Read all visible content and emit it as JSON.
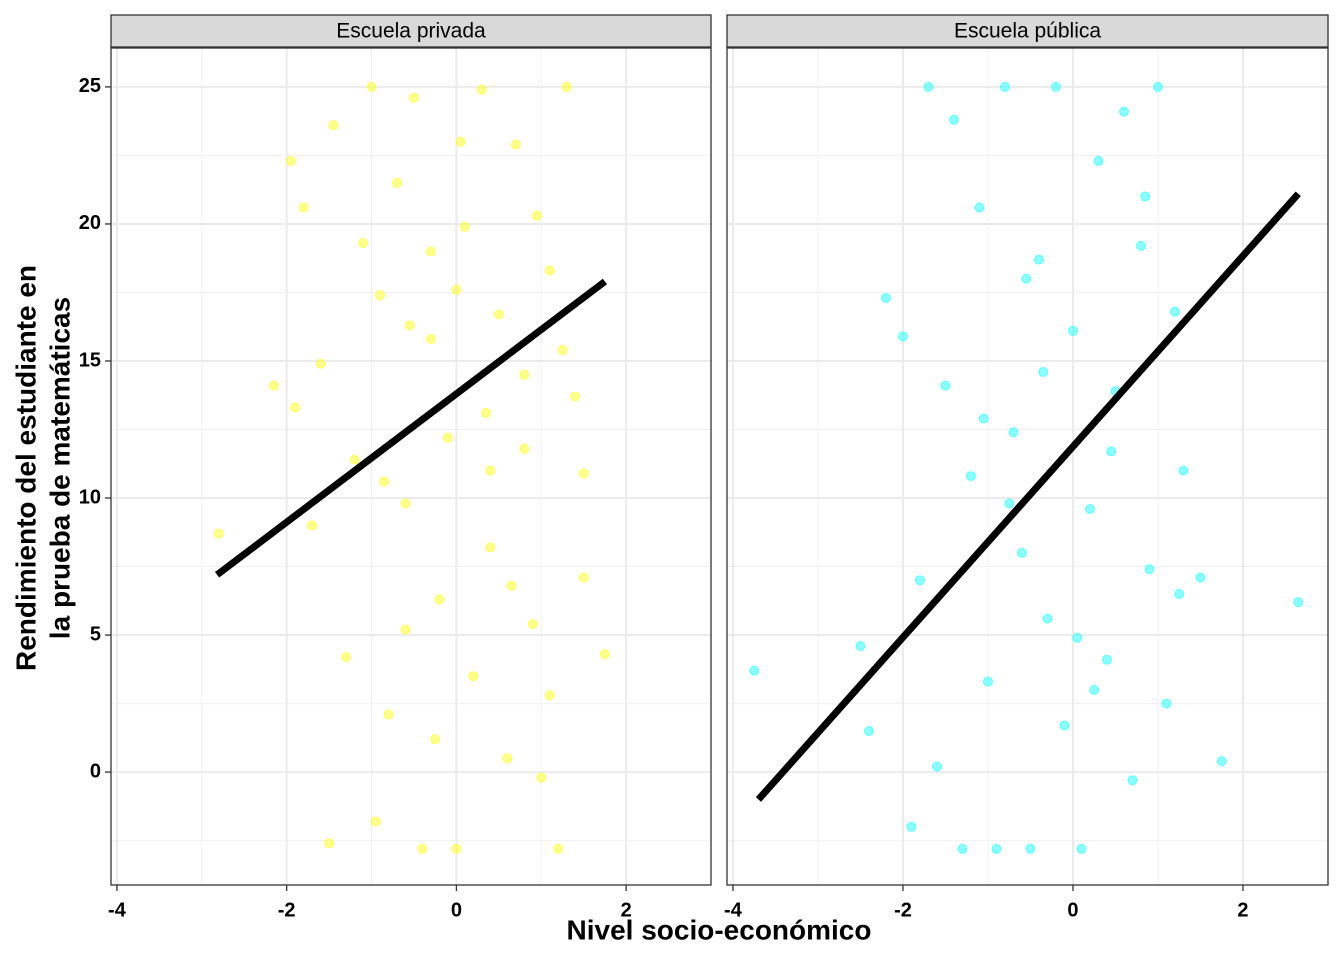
{
  "chart_data": {
    "type": "scatter",
    "x_label": "Nivel socio-económico",
    "y_label": [
      "Rendimiento del estudiante en",
      "la prueba de matemáticas"
    ],
    "xlim": [
      -4.07,
      3.0
    ],
    "ylim": [
      -4.12,
      26.42
    ],
    "xticks": [
      -4,
      -2,
      0,
      2
    ],
    "yticks": [
      0,
      5,
      10,
      15,
      20,
      25
    ],
    "grid": true,
    "panels": [
      {
        "title": "Escuela privada",
        "series": [
          {
            "type": "scatter",
            "color": "#ffff00",
            "x": [
              -2.8,
              -2.15,
              -1.95,
              -1.9,
              -1.8,
              -1.7,
              -1.6,
              -1.5,
              -1.45,
              -1.3,
              -1.2,
              -1.1,
              -1.0,
              -0.95,
              -0.9,
              -0.8,
              -0.7,
              -0.6,
              -0.5,
              -0.4,
              -0.3,
              -0.2,
              -0.1,
              0.0,
              0.1,
              0.2,
              0.3,
              0.4,
              0.5,
              0.6,
              0.7,
              0.8,
              0.9,
              1.0,
              1.1,
              1.2,
              1.3,
              1.4,
              1.5,
              1.75,
              -0.85,
              -0.55,
              -0.25,
              0.05,
              0.35,
              0.65,
              0.95,
              1.25,
              1.5,
              0.0,
              -0.6,
              0.4,
              1.1,
              -0.3,
              0.8
            ],
            "values": [
              8.7,
              14.1,
              22.3,
              13.3,
              20.6,
              9.0,
              14.9,
              -2.6,
              23.6,
              4.2,
              11.4,
              19.3,
              25.0,
              -1.8,
              17.4,
              2.1,
              21.5,
              9.8,
              24.6,
              -2.8,
              15.8,
              6.3,
              12.2,
              -2.8,
              19.9,
              3.5,
              24.9,
              8.2,
              16.7,
              0.5,
              22.9,
              11.8,
              5.4,
              -0.2,
              18.3,
              -2.8,
              25.0,
              13.7,
              7.1,
              4.3,
              10.6,
              16.3,
              1.2,
              23.0,
              13.1,
              6.8,
              20.3,
              15.4,
              10.9,
              17.6,
              5.2,
              11.0,
              2.8,
              19.0,
              14.5
            ]
          },
          {
            "type": "line",
            "color": "#000000",
            "x": [
              -2.82,
              1.75
            ],
            "values": [
              7.2,
              17.9
            ]
          }
        ]
      },
      {
        "title": "Escuela pública",
        "series": [
          {
            "type": "scatter",
            "color": "#00ffff",
            "x": [
              -3.75,
              -2.5,
              -2.4,
              -2.2,
              -2.0,
              -1.9,
              -1.8,
              -1.7,
              -1.6,
              -1.5,
              -1.4,
              -1.3,
              -1.2,
              -1.1,
              -1.0,
              -0.9,
              -0.8,
              -0.7,
              -0.6,
              -0.5,
              -0.4,
              -0.3,
              -0.2,
              -0.1,
              0.0,
              0.1,
              0.2,
              0.3,
              0.4,
              0.5,
              0.6,
              0.7,
              0.8,
              0.9,
              1.0,
              1.1,
              1.2,
              1.3,
              1.5,
              1.75,
              2.65,
              -0.75,
              -0.35,
              0.05,
              0.45,
              0.85,
              1.25,
              -1.05,
              0.25,
              -0.55
            ],
            "values": [
              3.7,
              4.6,
              1.5,
              17.3,
              15.9,
              -2.0,
              7.0,
              25.0,
              0.2,
              14.1,
              23.8,
              -2.8,
              10.8,
              20.6,
              3.3,
              -2.8,
              25.0,
              12.4,
              8.0,
              -2.8,
              18.7,
              5.6,
              25.0,
              1.7,
              16.1,
              -2.8,
              9.6,
              22.3,
              4.1,
              13.9,
              24.1,
              -0.3,
              19.2,
              7.4,
              25.0,
              2.5,
              16.8,
              11.0,
              7.1,
              0.4,
              6.2,
              9.8,
              14.6,
              4.9,
              11.7,
              21.0,
              6.5,
              12.9,
              3.0,
              18.0
            ]
          },
          {
            "type": "line",
            "color": "#000000",
            "x": [
              -3.7,
              2.65
            ],
            "values": [
              -1.0,
              21.1
            ]
          }
        ]
      }
    ]
  }
}
